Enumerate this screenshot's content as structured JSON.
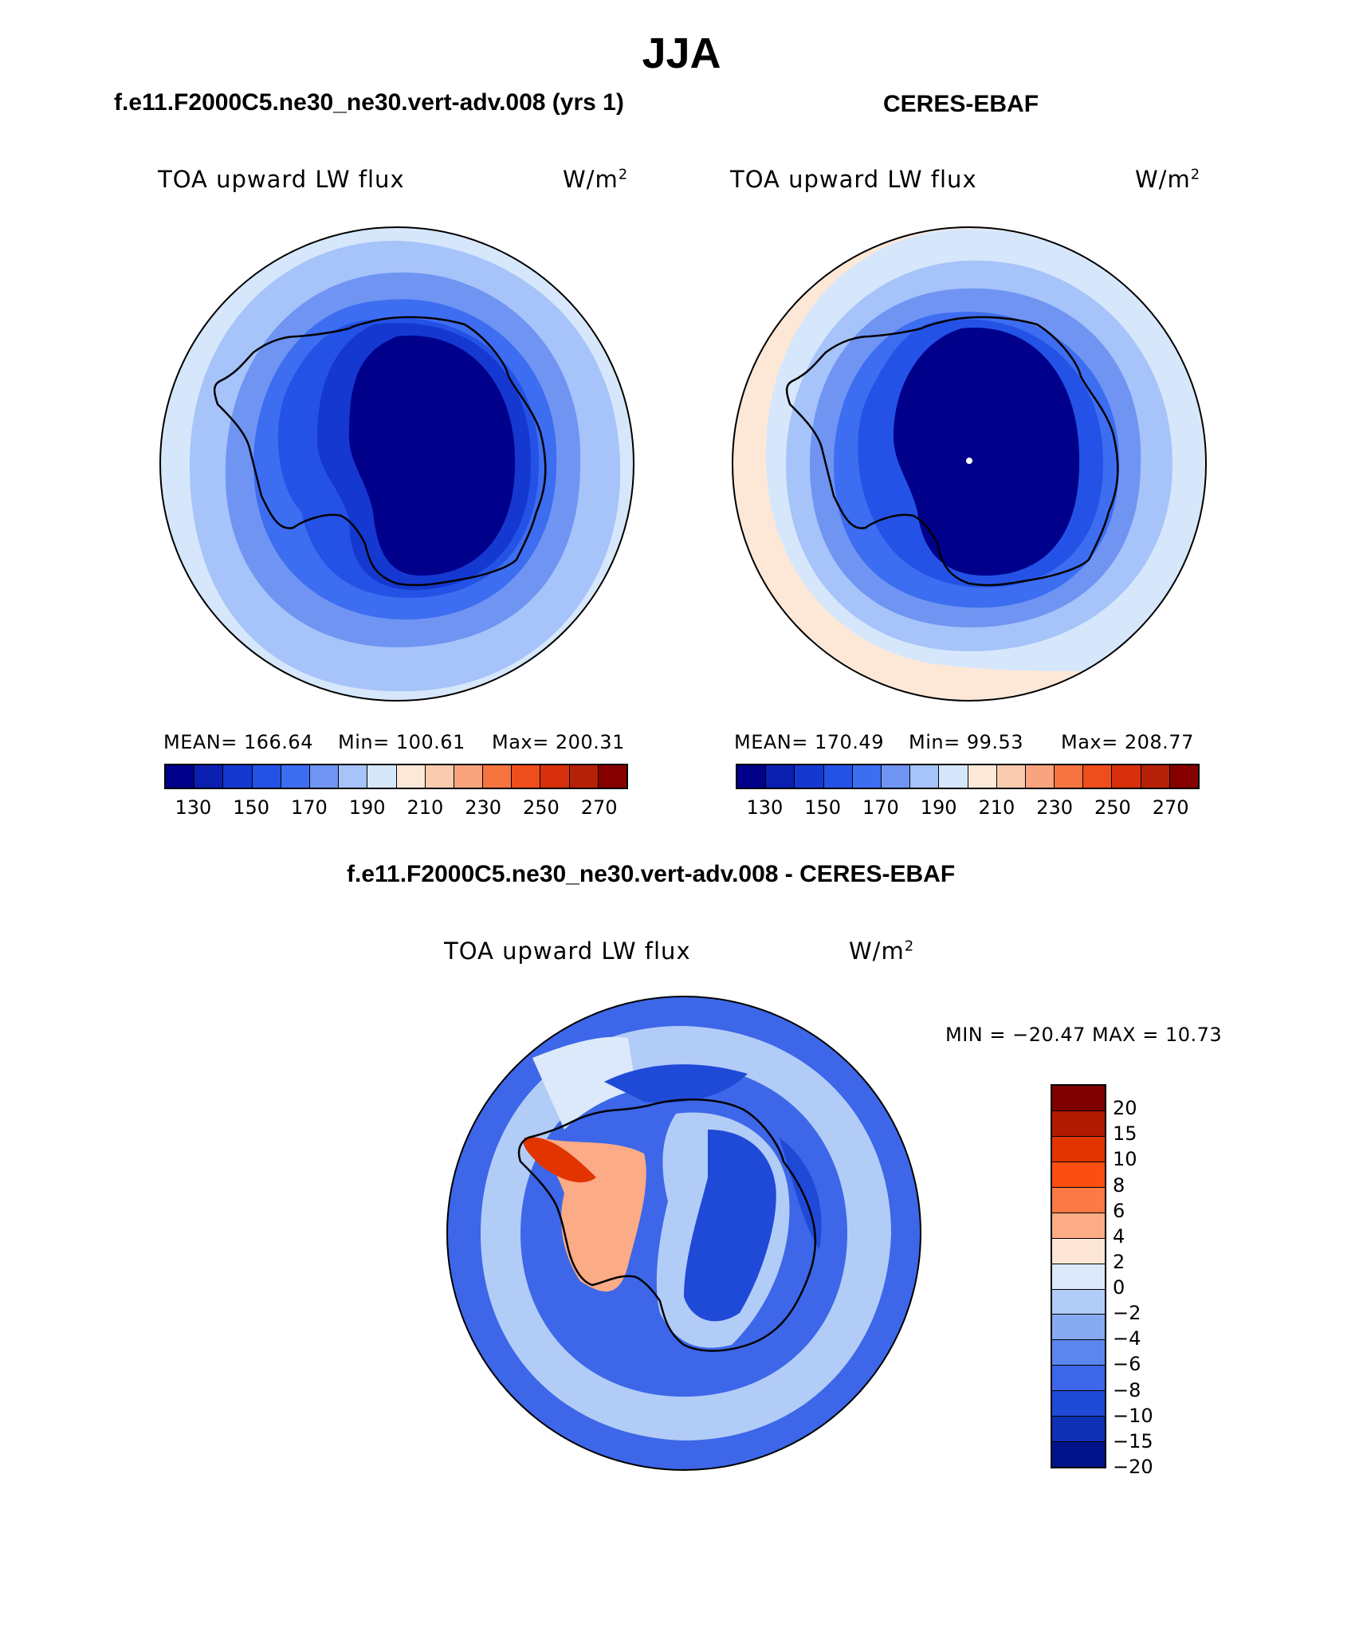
{
  "page": {
    "title": "JJA"
  },
  "panels": [
    {
      "heading": "f.e11.F2000C5.ne30_ne30.vert-adv.008 (yrs 1)",
      "variable": "TOA upward LW flux",
      "units_base": "W/m",
      "units_exp": "2",
      "mean": "MEAN= 166.64",
      "min": "Min= 100.61",
      "max": "Max= 200.31"
    },
    {
      "heading": "CERES-EBAF",
      "variable": "TOA upward LW flux",
      "units_base": "W/m",
      "units_exp": "2",
      "mean": "MEAN= 170.49",
      "min": "Min=  99.53",
      "max": "Max= 208.77"
    }
  ],
  "abs_colorbar": {
    "colors": [
      "#00008b",
      "#0a1fb0",
      "#1538d0",
      "#2452e6",
      "#3d6df0",
      "#6f94f2",
      "#a6c3fa",
      "#d6e7fb",
      "#fde8d8",
      "#fbcbb0",
      "#f9a47f",
      "#f5743f",
      "#ee4d1c",
      "#d8300c",
      "#b52008",
      "#860000"
    ],
    "ticks": [
      "130",
      "150",
      "170",
      "190",
      "210",
      "230",
      "250",
      "270"
    ]
  },
  "diff_panel": {
    "heading": "f.e11.F2000C5.ne30_ne30.vert-adv.008 - CERES-EBAF",
    "variable": "TOA upward LW flux",
    "units_base": "W/m",
    "units_exp": "2",
    "minmax": "MIN = −20.47 MAX =   10.73"
  },
  "diff_colorbar": {
    "colors": [
      "#7f0000",
      "#b21a00",
      "#e23400",
      "#fb4e10",
      "#fb7a45",
      "#fbab85",
      "#fde6d6",
      "#dbe9fb",
      "#b2ccf8",
      "#88aaf2",
      "#5b86ee",
      "#3d67e8",
      "#1f4ad8",
      "#0f30b2",
      "#00138b"
    ],
    "ticks": [
      "20",
      "15",
      "10",
      "8",
      "6",
      "4",
      "2",
      "0",
      "−2",
      "−4",
      "−6",
      "−8",
      "−10",
      "−15",
      "−20"
    ]
  },
  "map_colors": {
    "ocean_far": "#d6e7fb",
    "ocean_mid": "#a6c3fa",
    "ocean_near": "#6f94f2",
    "coast": "#3d6df0",
    "shelf": "#2452e6",
    "ice_edge": "#1538d0",
    "interior": "#00008b",
    "ring_warm": "#fde8d8",
    "diff_base": "#3d67e8",
    "diff_light": "#b2ccf8",
    "diff_pale": "#dbe9fb",
    "diff_dark": "#1f4ad8",
    "diff_warm": "#fbab85",
    "diff_hot": "#e23400"
  }
}
